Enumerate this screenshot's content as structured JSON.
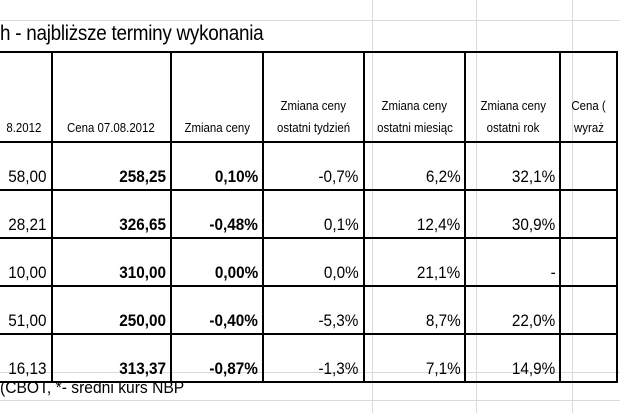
{
  "title": "h - najbliższe terminy wykonania",
  "headers": [
    [
      "8.2012"
    ],
    [
      "Cena 07.08.2012"
    ],
    [
      "Zmiana ceny"
    ],
    [
      "Zmiana ceny",
      "ostatni tydzień"
    ],
    [
      "Zmiana ceny",
      "ostatni miesiąc"
    ],
    [
      "Zmiana ceny",
      "ostatni rok"
    ],
    [
      "Cena (",
      "wyraż"
    ]
  ],
  "rows": [
    [
      "58,00",
      "258,25",
      "0,10%",
      "-0,7%",
      "6,2%",
      "32,1%",
      ""
    ],
    [
      "28,21",
      "326,65",
      "-0,48%",
      "0,1%",
      "12,4%",
      "30,9%",
      ""
    ],
    [
      "10,00",
      "310,00",
      "0,00%",
      "0,0%",
      "21,1%",
      "-",
      ""
    ],
    [
      "51,00",
      "250,00",
      "-0,40%",
      "-5,3%",
      "8,7%",
      "22,0%",
      ""
    ],
    [
      "16,13",
      "313,37",
      "-0,87%",
      "-1,3%",
      "7,1%",
      "14,9%",
      ""
    ]
  ],
  "footer": "(CBOT, *- średni kurs NBP"
}
